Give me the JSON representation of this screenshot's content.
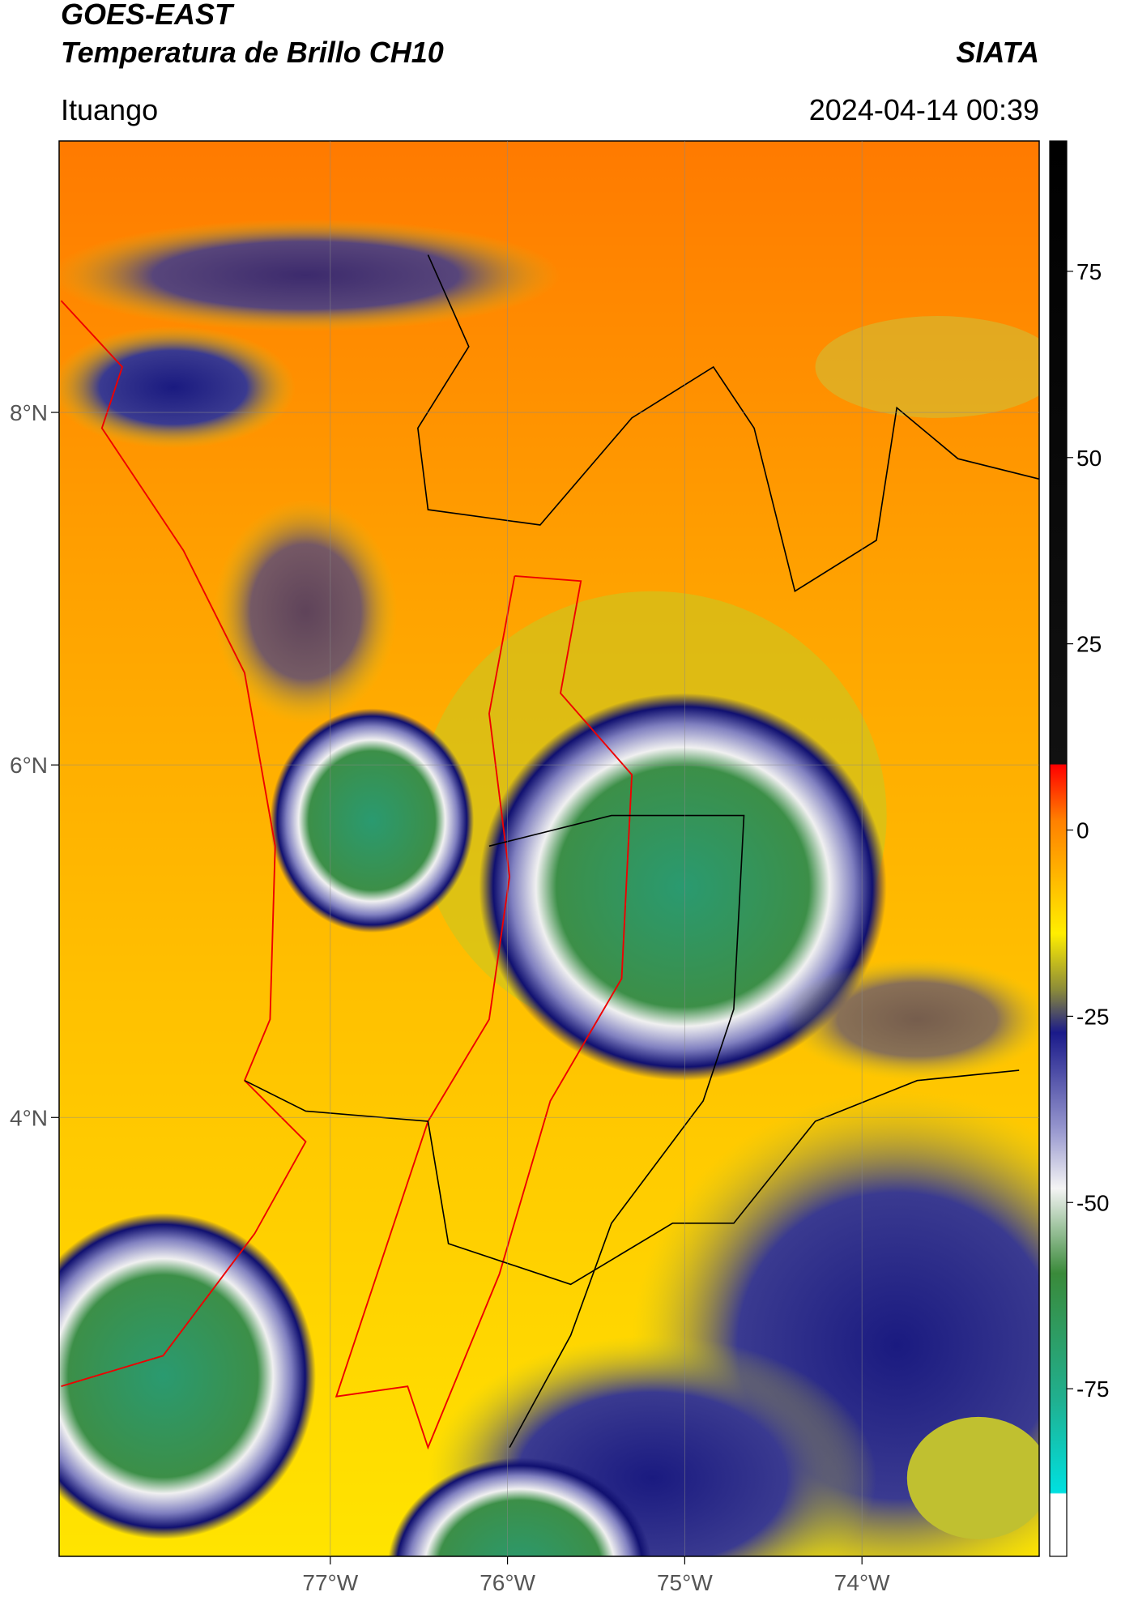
{
  "chart_data": {
    "type": "map",
    "title": "GOES-EAST",
    "subtitle": "Temperatura de Brillo CH10",
    "source": "SIATA",
    "location": "Ituango",
    "datetime": "2024-04-14 00:39",
    "xlim": [
      -78.53,
      -73.0
    ],
    "ylim": [
      1.51,
      9.54
    ],
    "xticks": [
      {
        "value": -77,
        "label": "77°W"
      },
      {
        "value": -76,
        "label": "76°W"
      },
      {
        "value": -75,
        "label": "75°W"
      },
      {
        "value": -74,
        "label": "74°W"
      }
    ],
    "yticks": [
      {
        "value": 4,
        "label": "4°N"
      },
      {
        "value": 6,
        "label": "6°N"
      },
      {
        "value": 8,
        "label": "8°N"
      }
    ],
    "grid": true,
    "colorbar": {
      "lim": [
        -97.5,
        92.5
      ],
      "ticks": [
        -75,
        -50,
        -25,
        0,
        25,
        50,
        75
      ]
    }
  }
}
